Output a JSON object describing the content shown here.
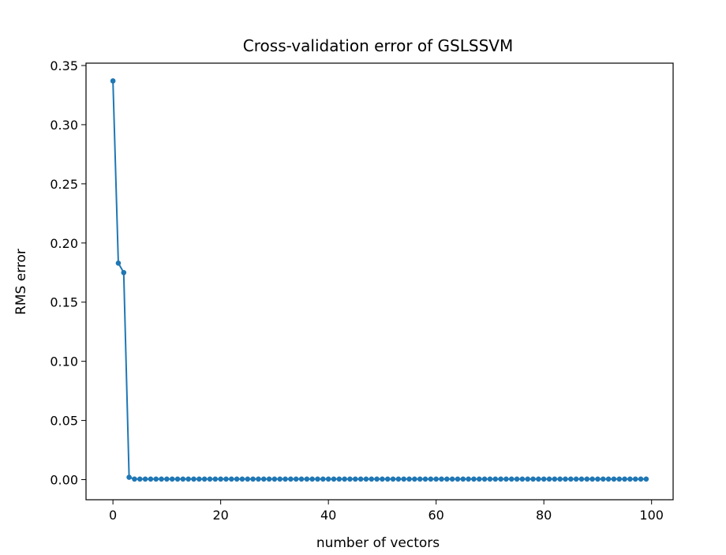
{
  "chart_data": {
    "type": "line",
    "title": "Cross-validation error of GSLSSVM",
    "xlabel": "number of vectors",
    "ylabel": "RMS error",
    "xlim": [
      -5,
      104
    ],
    "ylim": [
      -0.017,
      0.352
    ],
    "xticks": [
      0,
      20,
      40,
      60,
      80,
      100
    ],
    "xtick_labels": [
      "0",
      "20",
      "40",
      "60",
      "80",
      "100"
    ],
    "yticks": [
      0.0,
      0.05,
      0.1,
      0.15,
      0.2,
      0.25,
      0.3,
      0.35
    ],
    "ytick_labels": [
      "0.00",
      "0.05",
      "0.10",
      "0.15",
      "0.20",
      "0.25",
      "0.30",
      "0.35"
    ],
    "grid": false,
    "series": [
      {
        "color": "#1f77b4",
        "marker": "circle",
        "x": [
          0,
          1,
          2,
          3,
          4,
          5,
          6,
          7,
          8,
          9,
          10,
          11,
          12,
          13,
          14,
          15,
          16,
          17,
          18,
          19,
          20,
          21,
          22,
          23,
          24,
          25,
          26,
          27,
          28,
          29,
          30,
          31,
          32,
          33,
          34,
          35,
          36,
          37,
          38,
          39,
          40,
          41,
          42,
          43,
          44,
          45,
          46,
          47,
          48,
          49,
          50,
          51,
          52,
          53,
          54,
          55,
          56,
          57,
          58,
          59,
          60,
          61,
          62,
          63,
          64,
          65,
          66,
          67,
          68,
          69,
          70,
          71,
          72,
          73,
          74,
          75,
          76,
          77,
          78,
          79,
          80,
          81,
          82,
          83,
          84,
          85,
          86,
          87,
          88,
          89,
          90,
          91,
          92,
          93,
          94,
          95,
          96,
          97,
          98,
          99
        ],
        "y": [
          0.337,
          0.183,
          0.175,
          0.002,
          0.0005,
          0.0005,
          0.0005,
          0.0005,
          0.0005,
          0.0005,
          0.0005,
          0.0005,
          0.0005,
          0.0005,
          0.0005,
          0.0005,
          0.0005,
          0.0005,
          0.0005,
          0.0005,
          0.0005,
          0.0005,
          0.0005,
          0.0005,
          0.0005,
          0.0005,
          0.0005,
          0.0005,
          0.0005,
          0.0005,
          0.0005,
          0.0005,
          0.0005,
          0.0005,
          0.0005,
          0.0005,
          0.0005,
          0.0005,
          0.0005,
          0.0005,
          0.0005,
          0.0005,
          0.0005,
          0.0005,
          0.0005,
          0.0005,
          0.0005,
          0.0005,
          0.0005,
          0.0005,
          0.0005,
          0.0005,
          0.0005,
          0.0005,
          0.0005,
          0.0005,
          0.0005,
          0.0005,
          0.0005,
          0.0005,
          0.0005,
          0.0005,
          0.0005,
          0.0005,
          0.0005,
          0.0005,
          0.0005,
          0.0005,
          0.0005,
          0.0005,
          0.0005,
          0.0005,
          0.0005,
          0.0005,
          0.0005,
          0.0005,
          0.0005,
          0.0005,
          0.0005,
          0.0005,
          0.0005,
          0.0005,
          0.0005,
          0.0005,
          0.0005,
          0.0005,
          0.0005,
          0.0005,
          0.0005,
          0.0005,
          0.0005,
          0.0005,
          0.0005,
          0.0005,
          0.0005,
          0.0005,
          0.0005,
          0.0005,
          0.0005,
          0.0005
        ]
      }
    ]
  }
}
